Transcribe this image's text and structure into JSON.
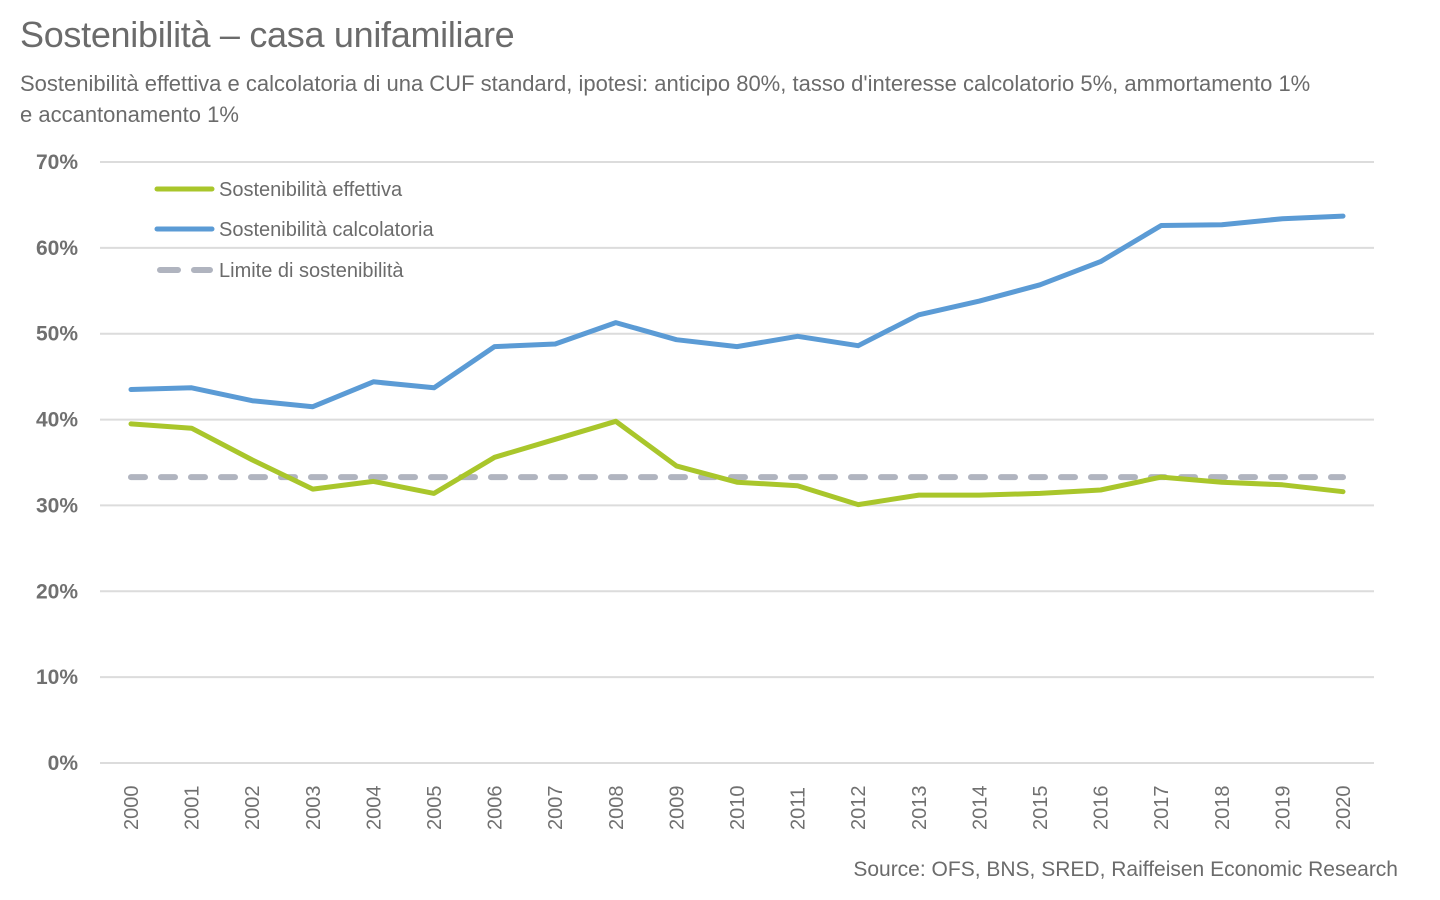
{
  "header": {
    "title": "Sostenibilità – casa unifamiliare",
    "subtitle": "Sostenibilità effettiva e calcolatoria di una CUF standard, ipotesi: anticipo 80%, tasso d'interesse calcolatorio 5%, ammortamento 1% e accantonamento 1%"
  },
  "footer": {
    "source": "Source: OFS, BNS, SRED, Raiffeisen Economic Research"
  },
  "chart_data": {
    "type": "line",
    "title": "Sostenibilità – casa unifamiliare",
    "subtitle": "Sostenibilità effettiva e calcolatoria di una CUF standard, ipotesi: anticipo 80%, tasso d'interesse calcolatorio 5%, ammortamento 1% e accantonamento 1%",
    "xlabel": "",
    "ylabel": "",
    "x": [
      "2000",
      "2001",
      "2002",
      "2003",
      "2004",
      "2005",
      "2006",
      "2007",
      "2008",
      "2009",
      "2010",
      "2011",
      "2012",
      "2013",
      "2014",
      "2015",
      "2016",
      "2017",
      "2018",
      "2019",
      "2020"
    ],
    "ylim": [
      0,
      70
    ],
    "yticks": [
      0,
      10,
      20,
      30,
      40,
      50,
      60,
      70
    ],
    "ytick_labels": [
      "0%",
      "10%",
      "20%",
      "30%",
      "40%",
      "50%",
      "60%",
      "70%"
    ],
    "grid": "horizontal",
    "legend_position": "top-left",
    "series": [
      {
        "name": "Sostenibilità effettiva",
        "color": "#a9c62b",
        "style": "solid",
        "values": [
          39.5,
          39.0,
          35.3,
          31.9,
          32.8,
          31.4,
          35.6,
          37.7,
          39.8,
          34.6,
          32.7,
          32.3,
          30.1,
          31.2,
          31.2,
          31.4,
          31.8,
          33.3,
          32.7,
          32.4,
          31.6
        ]
      },
      {
        "name": "Sostenibilità calcolatoria",
        "color": "#5b9bd5",
        "style": "solid",
        "values": [
          43.5,
          43.7,
          42.2,
          41.5,
          44.4,
          43.7,
          48.5,
          48.8,
          51.3,
          49.3,
          48.5,
          49.7,
          48.6,
          52.2,
          53.8,
          55.7,
          58.4,
          62.6,
          62.7,
          63.4,
          63.7
        ]
      },
      {
        "name": "Limite di sostenibilità",
        "color": "#b0b4bf",
        "style": "dashed",
        "values": [
          33.3,
          33.3,
          33.3,
          33.3,
          33.3,
          33.3,
          33.3,
          33.3,
          33.3,
          33.3,
          33.3,
          33.3,
          33.3,
          33.3,
          33.3,
          33.3,
          33.3,
          33.3,
          33.3,
          33.3,
          33.3
        ]
      }
    ]
  }
}
